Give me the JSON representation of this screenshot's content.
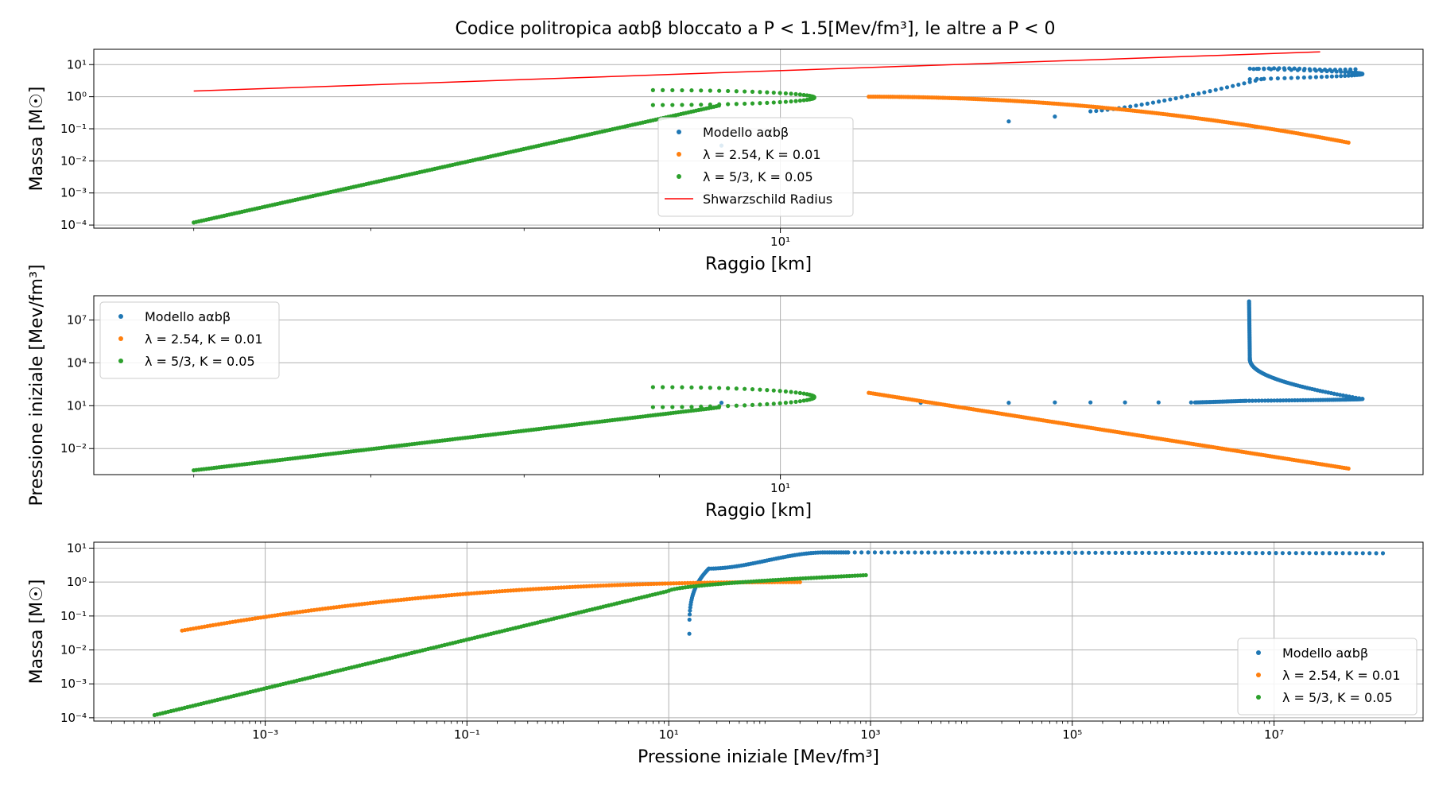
{
  "title": "Codice politropica aαbβ bloccato a P < 1.5[Mev/fm³], le altre a P < 0",
  "colors": {
    "model": "#1f77b4",
    "poly1": "#ff7f0e",
    "poly2": "#2ca02c",
    "schwarzschild": "#ff0000",
    "grid": "#b0b0b0"
  },
  "chart_data": [
    {
      "type": "scatter",
      "xlabel": "Raggio [km]",
      "ylabel": "Massa [M☉]",
      "xscale": "log",
      "yscale": "log",
      "xlim": [
        5.5,
        17.5
      ],
      "ylim": [
        8e-05,
        30
      ],
      "grid": true,
      "legend_position": "center",
      "x_ticks": [
        {
          "value": 10,
          "label": "10¹"
        }
      ],
      "y_ticks": [
        {
          "value": 0.0001,
          "label": "10⁻⁴"
        },
        {
          "value": 0.001,
          "label": "10⁻³"
        },
        {
          "value": 0.01,
          "label": "10⁻²"
        },
        {
          "value": 0.1,
          "label": "10⁻¹"
        },
        {
          "value": 1,
          "label": "10⁰"
        },
        {
          "value": 10,
          "label": "10¹"
        }
      ],
      "series": [
        {
          "name": "Modello aαbβ",
          "key": "model",
          "kind": "points",
          "mode": "model_mr"
        },
        {
          "name": "λ = 2.54, K = 0.01",
          "key": "poly1",
          "kind": "points",
          "mode": "poly1_mr"
        },
        {
          "name": "λ = 5/3, K = 0.05",
          "key": "poly2",
          "kind": "points",
          "mode": "poly2_mr"
        },
        {
          "name": "Shwarzschild Radius",
          "key": "schwarzschild",
          "kind": "line",
          "mode": "schwarzschild",
          "x": [
            6.0,
            16.0
          ],
          "y": [
            1.5,
            25.0
          ]
        }
      ]
    },
    {
      "type": "scatter",
      "xlabel": "Raggio [km]",
      "ylabel": "Pressione iniziale [Mev/fm³]",
      "xscale": "log",
      "yscale": "log",
      "xlim": [
        5.5,
        17.5
      ],
      "ylim": [
        0.00015,
        500000000
      ],
      "grid": true,
      "legend_position": "upper left",
      "x_ticks": [
        {
          "value": 10,
          "label": "10¹"
        }
      ],
      "y_ticks": [
        {
          "value": 0.01,
          "label": "10⁻²"
        },
        {
          "value": 10,
          "label": "10¹"
        },
        {
          "value": 10000,
          "label": "10⁴"
        },
        {
          "value": 10000000,
          "label": "10⁷"
        }
      ],
      "series": [
        {
          "name": "Modello aαbβ",
          "key": "model",
          "kind": "points",
          "mode": "model_pr"
        },
        {
          "name": "λ = 2.54, K = 0.01",
          "key": "poly1",
          "kind": "points",
          "mode": "poly1_pr"
        },
        {
          "name": "λ = 5/3, K = 0.05",
          "key": "poly2",
          "kind": "points",
          "mode": "poly2_pr"
        }
      ]
    },
    {
      "type": "scatter",
      "xlabel": "Pressione iniziale [Mev/fm³]",
      "ylabel": "Massa [M☉]",
      "xscale": "log",
      "yscale": "log",
      "xlim": [
        2e-05,
        300000000
      ],
      "ylim": [
        8e-05,
        15
      ],
      "grid": true,
      "legend_position": "lower right",
      "x_ticks": [
        {
          "value": 0.001,
          "label": "10⁻³"
        },
        {
          "value": 0.1,
          "label": "10⁻¹"
        },
        {
          "value": 10,
          "label": "10¹"
        },
        {
          "value": 1000,
          "label": "10³"
        },
        {
          "value": 100000,
          "label": "10⁵"
        },
        {
          "value": 10000000,
          "label": "10⁷"
        }
      ],
      "y_ticks": [
        {
          "value": 0.0001,
          "label": "10⁻⁴"
        },
        {
          "value": 0.001,
          "label": "10⁻³"
        },
        {
          "value": 0.01,
          "label": "10⁻²"
        },
        {
          "value": 0.1,
          "label": "10⁻¹"
        },
        {
          "value": 1,
          "label": "10⁰"
        },
        {
          "value": 10,
          "label": "10¹"
        }
      ],
      "series": [
        {
          "name": "Modello aαbβ",
          "key": "model",
          "kind": "points",
          "mode": "model_mp"
        },
        {
          "name": "λ = 2.54, K = 0.01",
          "key": "poly1",
          "kind": "points",
          "mode": "poly1_mp"
        },
        {
          "name": "λ = 5/3, K = 0.05",
          "key": "poly2",
          "kind": "points",
          "mode": "poly2_mp"
        }
      ]
    }
  ]
}
